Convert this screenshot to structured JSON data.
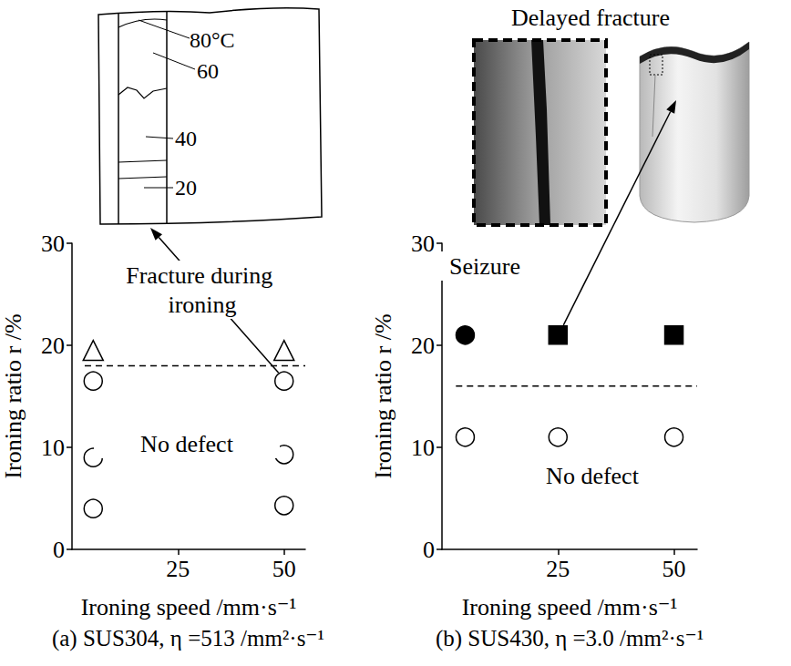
{
  "chart_data": [
    {
      "type": "scatter",
      "title": "(a) SUS304, η =513 /mm²·s⁻¹",
      "x_label": "Ironing speed /mm·s⁻¹",
      "y_label": "Ironing ratio r /%",
      "xlim": [
        0,
        55
      ],
      "xticks": [
        25,
        50
      ],
      "ylim": [
        0,
        30
      ],
      "yticks": [
        0,
        10,
        20,
        30
      ],
      "grid": false,
      "series": [
        {
          "type": "scatter",
          "marker": "circle_open",
          "color": "#000000",
          "x": [
            5,
            5,
            5,
            50,
            50,
            50
          ],
          "values": [
            4,
            9,
            16.5,
            4.3,
            9.3,
            16.5
          ]
        },
        {
          "type": "scatter",
          "marker": "triangle_open",
          "color": "#000000",
          "x": [
            5,
            50
          ],
          "values": [
            19.5,
            19.5
          ]
        },
        {
          "type": "line",
          "line_style": "dashed",
          "color": "#000000",
          "x": [
            3,
            55
          ],
          "values": [
            18,
            18
          ]
        }
      ],
      "annotations": [
        "Fracture during ironing",
        "No defect"
      ]
    },
    {
      "type": "scatter",
      "title": "(b) SUS430, η =3.0 /mm²·s⁻¹",
      "x_label": "Ironing speed /mm·s⁻¹",
      "y_label": "Ironing ratio r /%",
      "xlim": [
        0,
        55
      ],
      "xticks": [
        25,
        50
      ],
      "ylim": [
        0,
        30
      ],
      "yticks": [
        0,
        10,
        20,
        30
      ],
      "grid": false,
      "series": [
        {
          "type": "scatter",
          "marker": "circle_open",
          "color": "#000000",
          "x": [
            5,
            25,
            50
          ],
          "values": [
            11,
            11,
            11
          ]
        },
        {
          "type": "scatter",
          "marker": "circle",
          "color": "#000000",
          "x": [
            5
          ],
          "values": [
            21
          ]
        },
        {
          "type": "scatter",
          "marker": "square",
          "color": "#000000",
          "x": [
            25,
            50
          ],
          "values": [
            21,
            21
          ]
        },
        {
          "type": "line",
          "line_style": "dashed",
          "color": "#000000",
          "x": [
            3,
            55
          ],
          "values": [
            16,
            16
          ]
        }
      ],
      "annotations": [
        "Seizure",
        "No defect"
      ]
    }
  ],
  "sketch": {
    "labels": [
      "80°C",
      "60",
      "40",
      "20"
    ]
  },
  "photo": {
    "title": "Delayed fracture"
  }
}
